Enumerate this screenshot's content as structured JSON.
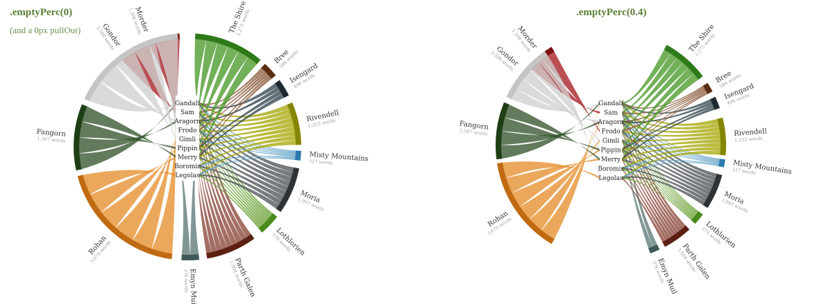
{
  "panels": [
    {
      "title": ".emptyPerc(0)",
      "subtitle": "(and a 0px pullOut)"
    },
    {
      "title": ".emptyPerc(0.4)"
    }
  ],
  "chart_data": {
    "type": "chord",
    "characters": [
      "Gandalf",
      "Sam",
      "Aragorn",
      "Frodo",
      "Gimli",
      "Pippin",
      "Merry",
      "Boromir",
      "Legolas"
    ],
    "locations": [
      {
        "name": "Morder",
        "words": "1,306 words",
        "color": "#a61d24",
        "arc": "#7a1212"
      },
      {
        "name": "The Shire",
        "words": "2,275 words",
        "color": "#4a9a2a",
        "arc": "#2f7a18"
      },
      {
        "name": "Bree",
        "words": "586 words",
        "color": "#8a5a3a",
        "arc": "#5a2e12"
      },
      {
        "name": "Isengard",
        "words": "496 words",
        "color": "#34474f",
        "arc": "#1e2a30"
      },
      {
        "name": "Rivendell",
        "words": "1,253 words",
        "color": "#a8a80a",
        "arc": "#868606"
      },
      {
        "name": "Misty Mountains",
        "words": "317 words",
        "color": "#5fa0c6",
        "arc": "#2b7ab0"
      },
      {
        "name": "Moria",
        "words": "1,097 words",
        "color": "#50565a",
        "arc": "#2e3336"
      },
      {
        "name": "Lothlorien",
        "words": "576 words",
        "color": "#6aa235",
        "arc": "#4a8a1e"
      },
      {
        "name": "Parth Galen",
        "words": "1,004 words",
        "color": "#8a4638",
        "arc": "#5c1f12"
      },
      {
        "name": "Emyn Muil",
        "words": "376 words",
        "color": "#5e7a78",
        "arc": "#3e5a58"
      },
      {
        "name": "Rohan",
        "words": "3,670 words",
        "color": "#e6902e",
        "arc": "#c06a12"
      },
      {
        "name": "Fangorn",
        "words": "1,567 words",
        "color": "#36562e",
        "arc": "#1e3e16"
      },
      {
        "name": "Gondor",
        "words": "3,598 words",
        "color": "#cfd0cf",
        "arc": "#c4c5c4"
      }
    ]
  }
}
